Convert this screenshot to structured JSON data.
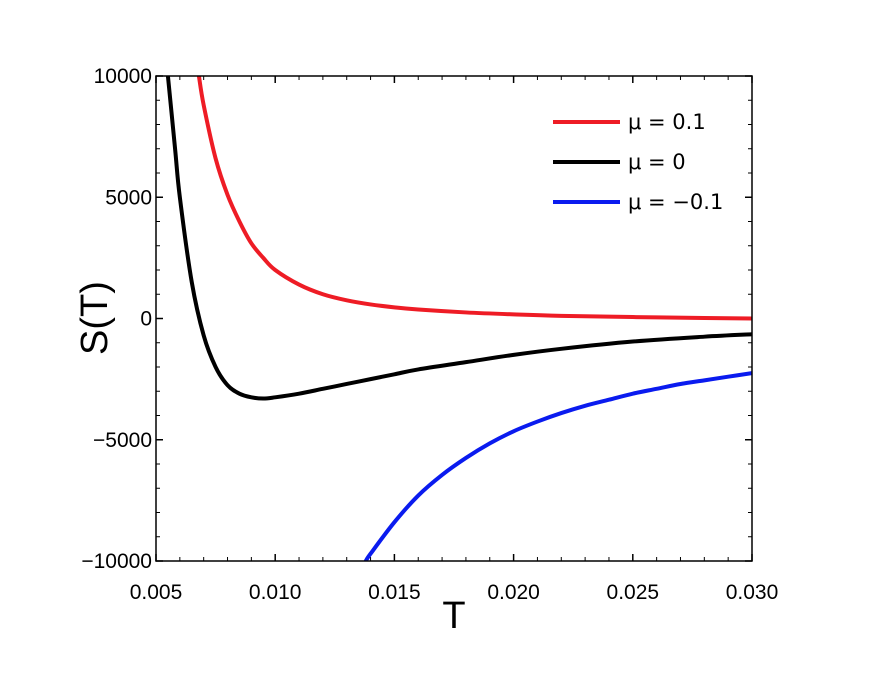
{
  "chart_data": {
    "type": "line",
    "xlabel": "T",
    "ylabel": "S(T)",
    "xlim": [
      0.005,
      0.03
    ],
    "ylim": [
      -10000,
      10000
    ],
    "x_ticks": [
      "0.005",
      "0.010",
      "0.015",
      "0.020",
      "0.025",
      "0.030"
    ],
    "y_ticks": [
      "10000",
      "5000",
      "0",
      "−5000",
      "−10000"
    ],
    "x_tick_values": [
      0.005,
      0.01,
      0.015,
      0.02,
      0.025,
      0.03
    ],
    "y_tick_values": [
      10000,
      5000,
      0,
      -5000,
      -10000
    ],
    "grid": false,
    "legend_position": "top-right",
    "series": [
      {
        "name": "μ = 0.1",
        "color": "#ee1c25",
        "x": [
          0.0068,
          0.007,
          0.0075,
          0.008,
          0.0085,
          0.009,
          0.0095,
          0.01,
          0.011,
          0.012,
          0.013,
          0.014,
          0.015,
          0.016,
          0.018,
          0.02,
          0.022,
          0.025,
          0.028,
          0.03
        ],
        "y": [
          10000,
          8800,
          6600,
          5100,
          4000,
          3100,
          2500,
          2000,
          1400,
          1000,
          750,
          580,
          460,
          370,
          250,
          170,
          110,
          60,
          20,
          0
        ]
      },
      {
        "name": "μ = 0",
        "color": "#000000",
        "x": [
          0.0055,
          0.0058,
          0.006,
          0.0065,
          0.007,
          0.0075,
          0.008,
          0.0085,
          0.009,
          0.0095,
          0.01,
          0.011,
          0.012,
          0.013,
          0.014,
          0.015,
          0.016,
          0.018,
          0.02,
          0.022,
          0.025,
          0.028,
          0.03
        ],
        "y": [
          10000,
          7000,
          5000,
          1500,
          -700,
          -2000,
          -2750,
          -3100,
          -3250,
          -3300,
          -3250,
          -3100,
          -2900,
          -2700,
          -2500,
          -2300,
          -2100,
          -1800,
          -1500,
          -1250,
          -950,
          -750,
          -650
        ]
      },
      {
        "name": "μ = −0.1",
        "color": "#0a1bef",
        "x": [
          0.0138,
          0.014,
          0.015,
          0.016,
          0.017,
          0.018,
          0.019,
          0.02,
          0.021,
          0.022,
          0.023,
          0.024,
          0.025,
          0.026,
          0.027,
          0.028,
          0.029,
          0.03
        ],
        "y": [
          -10000,
          -9700,
          -8400,
          -7300,
          -6450,
          -5750,
          -5150,
          -4650,
          -4250,
          -3900,
          -3600,
          -3350,
          -3100,
          -2900,
          -2700,
          -2550,
          -2400,
          -2250
        ]
      }
    ]
  }
}
